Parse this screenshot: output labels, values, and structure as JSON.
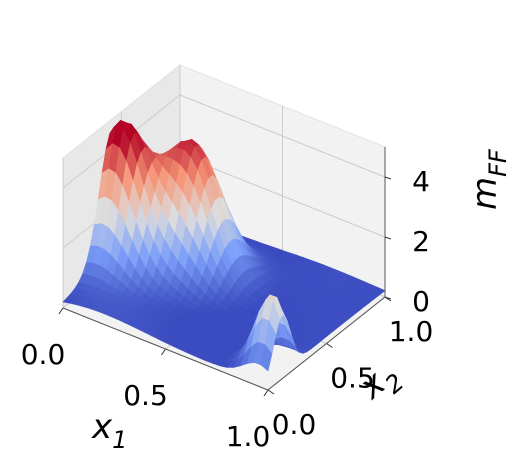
{
  "chart_data": {
    "type": "surface",
    "projection": "3d",
    "colormap": "coolwarm",
    "xlabel": "x",
    "xlabel_sub": "1",
    "ylabel": "x",
    "ylabel_sub": "2",
    "zlabel": "m",
    "zlabel_sub": "FF",
    "xlim": [
      0,
      1
    ],
    "ylim": [
      0,
      1
    ],
    "zlim": [
      0,
      5
    ],
    "x_ticks": [
      0.0,
      0.5,
      1.0
    ],
    "x_tick_labels": [
      "0.0",
      "0.5",
      "1.0"
    ],
    "y_ticks": [
      0.0,
      0.5,
      1.0
    ],
    "y_tick_labels": [
      "0.0",
      "0.5",
      "1.0"
    ],
    "z_ticks": [
      0,
      2,
      4
    ],
    "z_tick_labels": [
      "0",
      "2",
      "4"
    ],
    "grid": true,
    "peaks": [
      {
        "x1": 0.04,
        "x2": 0.42,
        "height": 4.6
      },
      {
        "x1": 0.28,
        "x2": 0.62,
        "height": 4.4
      },
      {
        "x1": 0.95,
        "x2": 0.12,
        "height": 2.7
      }
    ],
    "surface_min": 0.2
  },
  "colors": {
    "pane": "#f2f2f2",
    "pane_side": "#e8e8e8",
    "grid": "#cccccc",
    "edge": "#555555"
  }
}
